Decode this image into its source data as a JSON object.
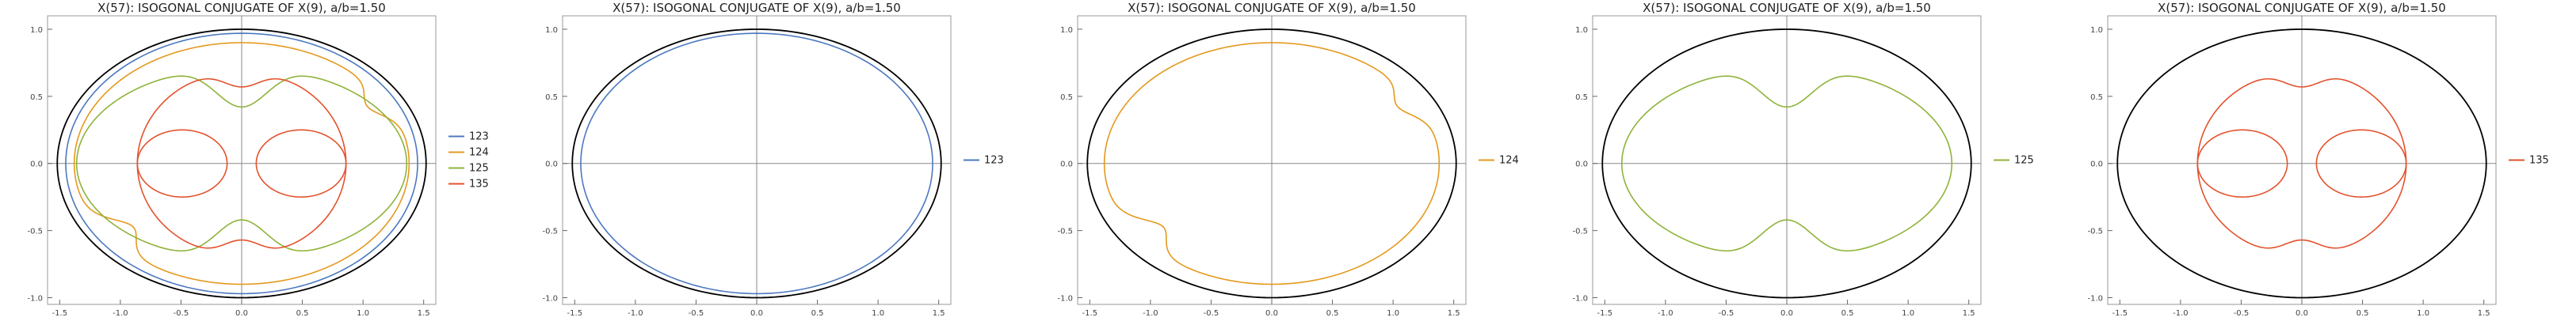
{
  "colors": {
    "123": "#4C78C0",
    "124": "#E39A1F",
    "125": "#8FB33A",
    "135": "#E3522C",
    "ellipse": "#000000",
    "axis": "#888888"
  },
  "chart_data": [
    {
      "type": "line",
      "title": "X(57): ISOGONAL CONJUGATE OF X(9), a/b=1.50",
      "xlabel": "",
      "ylabel": "",
      "xlim": [
        -1.6,
        1.6
      ],
      "ylim": [
        -1.05,
        1.1
      ],
      "xticks": [
        "-1.5",
        "-1.0",
        "-0.5",
        "0.0",
        "0.5",
        "1.0",
        "1.5"
      ],
      "yticks": [
        "-1.0",
        "-0.5",
        "0.0",
        "0.5",
        "1.0"
      ],
      "grid": false,
      "legend": "right",
      "series": [
        {
          "name": "123",
          "curve": "ellipse",
          "values": {
            "a": 1.45,
            "b": 0.97
          }
        },
        {
          "name": "124",
          "curve": "limacon",
          "values": {
            "x_extent": [
              -1.38,
              1.38
            ],
            "y_extent": [
              -0.9,
              0.9
            ],
            "cusp": [
              -1.0,
              -0.4
            ]
          }
        },
        {
          "name": "125",
          "curve": "bean",
          "values": {
            "x_extent": [
              -1.36,
              1.36
            ],
            "y_extent": [
              -0.72,
              0.72
            ],
            "cusps": [
              [
                0.0,
                0.5
              ],
              [
                0.0,
                -0.5
              ]
            ]
          }
        },
        {
          "name": "135",
          "curve": "double-loop",
          "values": {
            "x_extent": [
              -0.86,
              0.86
            ],
            "y_extent": [
              -0.69,
              0.69
            ],
            "inner_loops": [
              [
                -0.86,
                -0.12
              ],
              [
                0.12,
                0.86
              ]
            ]
          }
        }
      ]
    },
    {
      "type": "line",
      "title": "X(57): ISOGONAL CONJUGATE OF X(9), a/b=1.50",
      "xlabel": "",
      "ylabel": "",
      "xlim": [
        -1.6,
        1.6
      ],
      "ylim": [
        -1.05,
        1.1
      ],
      "xticks": [
        "-1.5",
        "-1.0",
        "-0.5",
        "0.0",
        "0.5",
        "1.0",
        "1.5"
      ],
      "yticks": [
        "-1.0",
        "-0.5",
        "0.0",
        "0.5",
        "1.0"
      ],
      "grid": false,
      "legend": "right",
      "series": [
        {
          "name": "123",
          "curve": "ellipse",
          "values": {
            "a": 1.45,
            "b": 0.97
          }
        }
      ]
    },
    {
      "type": "line",
      "title": "X(57): ISOGONAL CONJUGATE OF X(9), a/b=1.50",
      "xlabel": "",
      "ylabel": "",
      "xlim": [
        -1.6,
        1.6
      ],
      "ylim": [
        -1.05,
        1.1
      ],
      "xticks": [
        "-1.5",
        "-1.0",
        "-0.5",
        "0.0",
        "0.5",
        "1.0",
        "1.5"
      ],
      "yticks": [
        "-1.0",
        "-0.5",
        "0.0",
        "0.5",
        "1.0"
      ],
      "grid": false,
      "legend": "right",
      "series": [
        {
          "name": "124",
          "curve": "limacon",
          "values": {
            "x_extent": [
              -1.38,
              1.38
            ],
            "y_extent": [
              -0.9,
              0.9
            ],
            "cusp": [
              -1.0,
              -0.4
            ]
          }
        }
      ]
    },
    {
      "type": "line",
      "title": "X(57): ISOGONAL CONJUGATE OF X(9), a/b=1.50",
      "xlabel": "",
      "ylabel": "",
      "xlim": [
        -1.6,
        1.6
      ],
      "ylim": [
        -1.05,
        1.1
      ],
      "xticks": [
        "-1.5",
        "-1.0",
        "-0.5",
        "0.0",
        "0.5",
        "1.0",
        "1.5"
      ],
      "yticks": [
        "-1.0",
        "-0.5",
        "0.0",
        "0.5",
        "1.0"
      ],
      "grid": false,
      "legend": "right",
      "series": [
        {
          "name": "125",
          "curve": "bean",
          "values": {
            "x_extent": [
              -1.36,
              1.36
            ],
            "y_extent": [
              -0.72,
              0.72
            ],
            "cusps": [
              [
                0.0,
                0.5
              ],
              [
                0.0,
                -0.5
              ]
            ]
          }
        }
      ]
    },
    {
      "type": "line",
      "title": "X(57): ISOGONAL CONJUGATE OF X(9), a/b=1.50",
      "xlabel": "",
      "ylabel": "",
      "xlim": [
        -1.6,
        1.6
      ],
      "ylim": [
        -1.05,
        1.1
      ],
      "xticks": [
        "-1.5",
        "-1.0",
        "-0.5",
        "0.0",
        "0.5",
        "1.0",
        "1.5"
      ],
      "yticks": [
        "-1.0",
        "-0.5",
        "0.0",
        "0.5",
        "1.0"
      ],
      "grid": false,
      "legend": "right",
      "series": [
        {
          "name": "135",
          "curve": "double-loop",
          "values": {
            "x_extent": [
              -0.86,
              0.86
            ],
            "y_extent": [
              -0.69,
              0.69
            ],
            "inner_loops": [
              [
                -0.86,
                -0.12
              ],
              [
                0.12,
                0.86
              ]
            ]
          }
        }
      ]
    }
  ]
}
